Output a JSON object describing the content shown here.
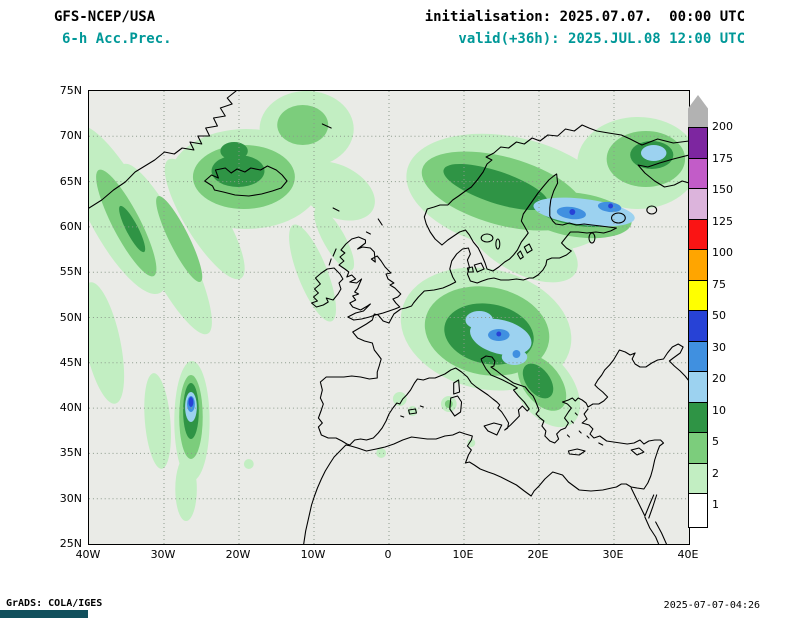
{
  "header": {
    "model": "GFS-NCEP/USA",
    "field": "6-h Acc.Prec.",
    "init": "initialisation: 2025.07.07.  00:00 UTC",
    "valid": "valid(+36h): 2025.JUL.08 12:00 UTC"
  },
  "axes": {
    "lat": [
      "75N",
      "70N",
      "65N",
      "60N",
      "55N",
      "50N",
      "45N",
      "40N",
      "35N",
      "30N",
      "25N"
    ],
    "lon": [
      "40W",
      "30W",
      "20W",
      "10W",
      "0",
      "10E",
      "20E",
      "30E",
      "40E"
    ]
  },
  "colorbar": {
    "labels": [
      "200",
      "175",
      "150",
      "125",
      "100",
      "75",
      "50",
      "30",
      "20",
      "10",
      "5",
      "2",
      "1"
    ],
    "segments": [
      {
        "range": ">200",
        "color": "#b2b2b2",
        "arrow": true
      },
      {
        "range": "175-200",
        "color": "#7d26a0"
      },
      {
        "range": "150-175",
        "color": "#c25cc8"
      },
      {
        "range": "125-150",
        "color": "#dcb4dc"
      },
      {
        "range": "100-125",
        "color": "#fa1414"
      },
      {
        "range": "75-100",
        "color": "#ffa500"
      },
      {
        "range": "50-75",
        "color": "#ffff00"
      },
      {
        "range": "30-50",
        "color": "#2742d6"
      },
      {
        "range": "20-30",
        "color": "#4090e0"
      },
      {
        "range": "10-20",
        "color": "#9cd2f0"
      },
      {
        "range": "5-10",
        "color": "#2f9445"
      },
      {
        "range": "2-5",
        "color": "#7ccd7c"
      },
      {
        "range": "1-2",
        "color": "#c2eec2"
      },
      {
        "range": "<1",
        "color": "#ffffff"
      }
    ]
  },
  "footer": {
    "credit": "GrADS: COLA/IGES",
    "generated": "2025-07-07-04:26"
  },
  "colors": {
    "teal": "#009898",
    "map_bg": "#eaebe7",
    "grid": "#8b9a8b",
    "green_1": "#c2eec2",
    "green_2": "#7ccd7c",
    "green_3": "#2f9445",
    "blue_1": "#9cd2f0",
    "blue_2": "#4090e0",
    "blue_3": "#2742d6",
    "footer_bar": "#114f5c"
  }
}
